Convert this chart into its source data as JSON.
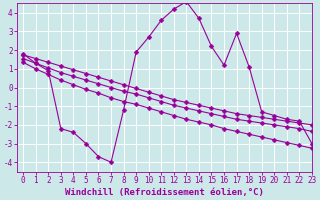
{
  "x": [
    0,
    1,
    2,
    3,
    4,
    5,
    6,
    7,
    8,
    9,
    10,
    11,
    12,
    13,
    14,
    15,
    16,
    17,
    18,
    19,
    20,
    21,
    22,
    23
  ],
  "y_main": [
    1.8,
    1.3,
    0.9,
    -2.2,
    -2.4,
    -3.0,
    -3.7,
    -4.0,
    -1.2,
    1.9,
    2.7,
    3.6,
    4.2,
    4.6,
    3.7,
    2.2,
    1.2,
    2.9,
    1.1,
    -1.3,
    -1.5,
    -1.7,
    -1.8,
    -3.0
  ],
  "y_upper": [
    1.75,
    1.55,
    1.35,
    1.15,
    0.95,
    0.75,
    0.55,
    0.35,
    0.15,
    -0.05,
    -0.25,
    -0.45,
    -0.65,
    -0.8,
    -0.95,
    -1.1,
    -1.25,
    -1.4,
    -1.5,
    -1.6,
    -1.7,
    -1.8,
    -1.9,
    -2.0
  ],
  "y_mid": [
    1.55,
    1.3,
    1.05,
    0.8,
    0.6,
    0.4,
    0.2,
    0.0,
    -0.2,
    -0.35,
    -0.55,
    -0.75,
    -0.95,
    -1.1,
    -1.25,
    -1.4,
    -1.55,
    -1.7,
    -1.8,
    -1.9,
    -2.0,
    -2.1,
    -2.2,
    -2.35
  ],
  "y_lower": [
    1.35,
    1.0,
    0.7,
    0.4,
    0.15,
    -0.1,
    -0.3,
    -0.55,
    -0.75,
    -0.9,
    -1.1,
    -1.3,
    -1.5,
    -1.7,
    -1.85,
    -2.0,
    -2.2,
    -2.35,
    -2.5,
    -2.65,
    -2.8,
    -2.95,
    -3.1,
    -3.25
  ],
  "color": "#990099",
  "bg_color": "#cce8e8",
  "grid_color": "#ffffff",
  "xlabel": "Windchill (Refroidissement éolien,°C)",
  "ylim": [
    -4.5,
    4.5
  ],
  "xlim": [
    -0.5,
    23
  ],
  "yticks": [
    -4,
    -3,
    -2,
    -1,
    0,
    1,
    2,
    3,
    4
  ],
  "xticks": [
    0,
    1,
    2,
    3,
    4,
    5,
    6,
    7,
    8,
    9,
    10,
    11,
    12,
    13,
    14,
    15,
    16,
    17,
    18,
    19,
    20,
    21,
    22,
    23
  ],
  "marker": "D",
  "markersize": 2.5,
  "linewidth": 0.8,
  "xlabel_fontsize": 6.5,
  "tick_fontsize": 5.5
}
